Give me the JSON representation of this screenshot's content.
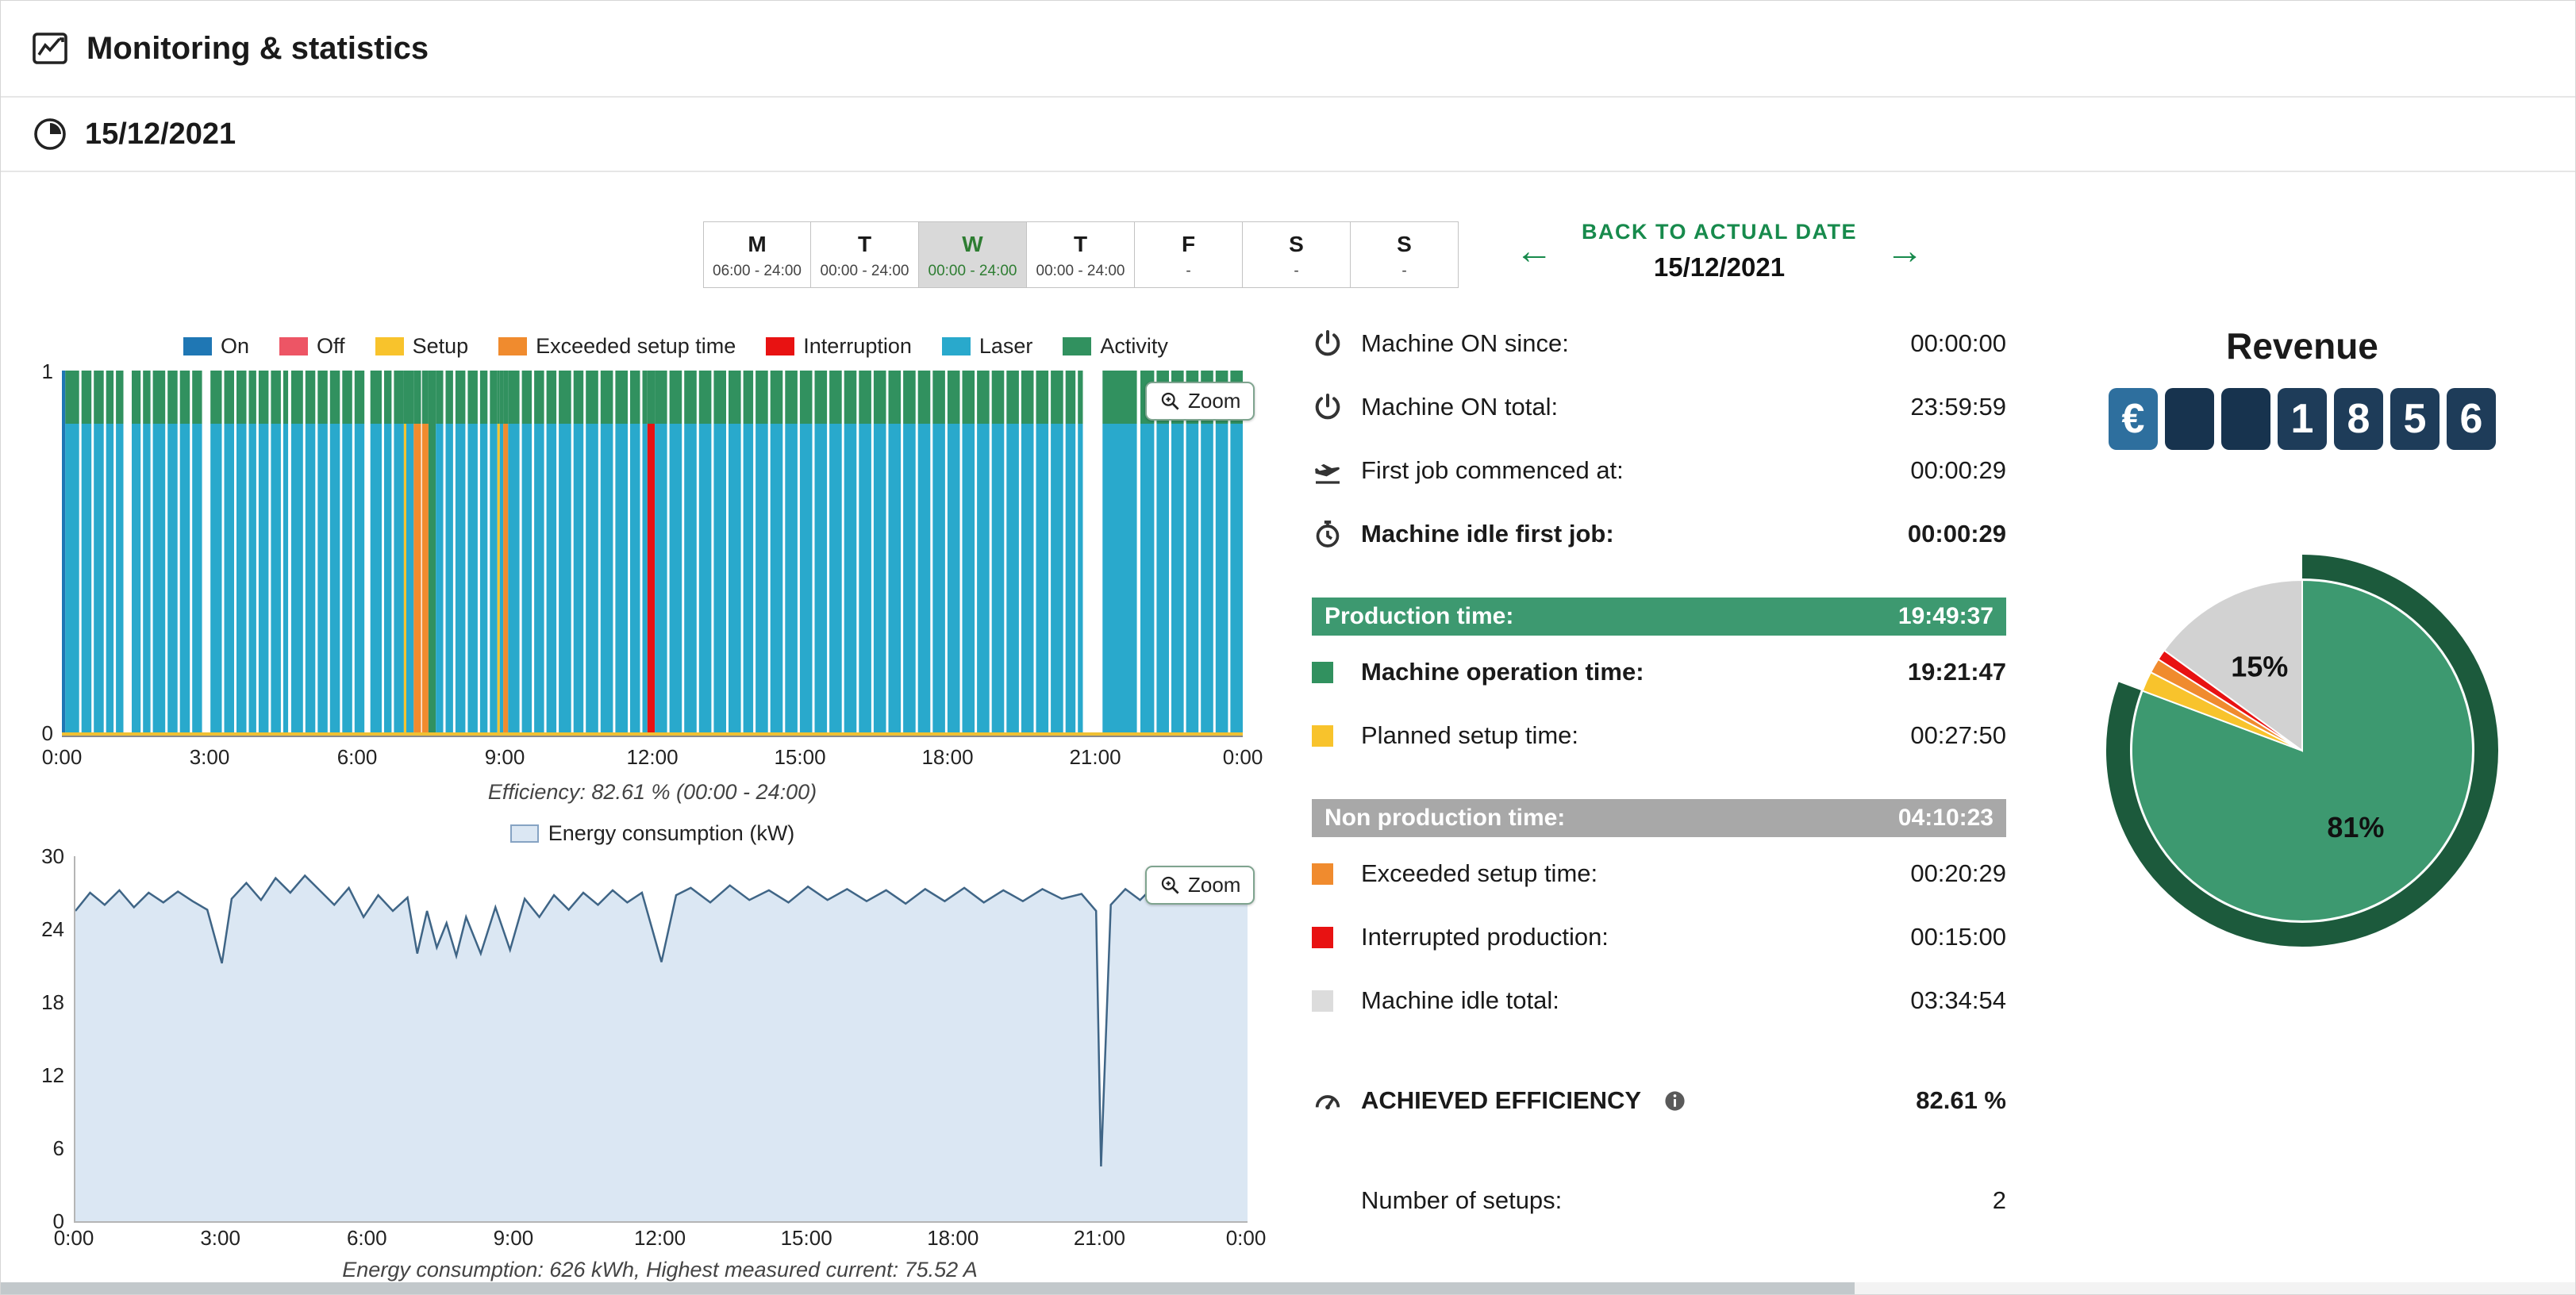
{
  "header": {
    "title": "Monitoring & statistics"
  },
  "datebar": {
    "date": "15/12/2021"
  },
  "week": {
    "days": [
      {
        "label": "M",
        "time": "06:00 - 24:00",
        "selected": false
      },
      {
        "label": "T",
        "time": "00:00 - 24:00",
        "selected": false
      },
      {
        "label": "W",
        "time": "00:00 - 24:00",
        "selected": true
      },
      {
        "label": "T",
        "time": "00:00 - 24:00",
        "selected": false
      },
      {
        "label": "F",
        "time": "-",
        "selected": false
      },
      {
        "label": "S",
        "time": "-",
        "selected": false
      },
      {
        "label": "S",
        "time": "-",
        "selected": false
      }
    ]
  },
  "nav": {
    "left_arrow": "←",
    "back_label": "BACK TO ACTUAL DATE",
    "right_arrow": "→",
    "date": "15/12/2021"
  },
  "legend": [
    {
      "label": "On",
      "color": "#1f77b4"
    },
    {
      "label": "Off",
      "color": "#ed5565"
    },
    {
      "label": "Setup",
      "color": "#f8c32c"
    },
    {
      "label": "Exceeded setup time",
      "color": "#f08b2e"
    },
    {
      "label": "Interruption",
      "color": "#e81212"
    },
    {
      "label": "Laser",
      "color": "#29a9cc"
    },
    {
      "label": "Activity",
      "color": "#31915f"
    }
  ],
  "zoom_button": {
    "label": "Zoom"
  },
  "captions": {
    "efficiency": "Efficiency: 82.61 % (00:00 - 24:00)",
    "energy": "Energy consumption: 626 kWh, Highest measured current: 75.52 A"
  },
  "energy_legend": {
    "label": "Energy consumption (kW)"
  },
  "stats": {
    "rows": [
      {
        "type": "row",
        "icon": "power",
        "label": "Machine ON since:",
        "value": "00:00:00"
      },
      {
        "type": "row",
        "icon": "power",
        "label": "Machine ON total:",
        "value": "23:59:59"
      },
      {
        "type": "row",
        "icon": "takeoff",
        "label": "First job commenced at:",
        "value": "00:00:29"
      },
      {
        "type": "row",
        "icon": "stopwatch",
        "label": "Machine idle first job:",
        "value": "00:00:29",
        "bold": true
      },
      {
        "type": "header",
        "color": "#3d9970",
        "label": "Production time:",
        "value": "19:49:37"
      },
      {
        "type": "row",
        "swatch": "#31915f",
        "label": "Machine operation time:",
        "value": "19:21:47",
        "bold": true
      },
      {
        "type": "row",
        "swatch": "#f8c32c",
        "label": "Planned setup time:",
        "value": "00:27:50"
      },
      {
        "type": "header",
        "color": "#a8a8a8",
        "label": "Non production time:",
        "value": "04:10:23"
      },
      {
        "type": "row",
        "swatch": "#f08b2e",
        "label": "Exceeded setup time:",
        "value": "00:20:29"
      },
      {
        "type": "row",
        "swatch": "#e81212",
        "label": "Interrupted production:",
        "value": "00:15:00"
      },
      {
        "type": "row",
        "swatch": "#dcdcdc",
        "label": "Machine idle total:",
        "value": "03:34:54"
      },
      {
        "type": "row",
        "icon": "gauge",
        "label": "ACHIEVED EFFICIENCY",
        "value": "82.61 %",
        "bold": true,
        "info": true,
        "gap": true
      },
      {
        "type": "row",
        "label": "Number of setups:",
        "value": "2",
        "gap": true
      }
    ]
  },
  "revenue": {
    "title": "Revenue",
    "currency": "€",
    "digits": [
      "",
      "",
      "1",
      "8",
      "5",
      "6"
    ]
  },
  "chart_data": [
    {
      "type": "timeline",
      "title": "Machine state timeline (00:00 - 24:00)",
      "x_range_hours": [
        0,
        24
      ],
      "x_ticks": [
        "0:00",
        "3:00",
        "6:00",
        "9:00",
        "12:00",
        "15:00",
        "18:00",
        "21:00",
        "0:00"
      ],
      "y_ticks": [
        "1",
        "0"
      ],
      "activity_band_fraction": 0.145,
      "baseline_color": "#f0c033",
      "segments": [
        {
          "state": "on",
          "start": 0.0,
          "end": 0.07
        },
        {
          "state": "laser",
          "start": 0.07,
          "end": 1.25
        },
        {
          "state": "gap",
          "start": 1.25,
          "end": 1.42
        },
        {
          "state": "laser",
          "start": 1.42,
          "end": 2.85
        },
        {
          "state": "gap",
          "start": 2.85,
          "end": 3.02
        },
        {
          "state": "laser",
          "start": 3.02,
          "end": 4.6
        },
        {
          "state": "gap",
          "start": 4.6,
          "end": 4.66
        },
        {
          "state": "laser",
          "start": 4.66,
          "end": 6.15
        },
        {
          "state": "gap",
          "start": 6.15,
          "end": 6.27
        },
        {
          "state": "laser",
          "start": 6.27,
          "end": 6.95
        },
        {
          "state": "setup",
          "start": 6.95,
          "end": 7.0
        },
        {
          "state": "laser",
          "start": 7.0,
          "end": 7.15
        },
        {
          "state": "exceeded",
          "start": 7.15,
          "end": 7.3
        },
        {
          "state": "gap",
          "start": 7.3,
          "end": 7.32
        },
        {
          "state": "exceeded",
          "start": 7.32,
          "end": 7.45
        },
        {
          "state": "activity",
          "start": 7.45,
          "end": 7.6
        },
        {
          "state": "laser",
          "start": 7.6,
          "end": 8.85
        },
        {
          "state": "setup",
          "start": 8.85,
          "end": 8.9
        },
        {
          "state": "laser",
          "start": 8.9,
          "end": 8.97
        },
        {
          "state": "exceeded",
          "start": 8.97,
          "end": 9.07
        },
        {
          "state": "laser",
          "start": 9.07,
          "end": 11.9
        },
        {
          "state": "interruption",
          "start": 11.9,
          "end": 12.05
        },
        {
          "state": "laser",
          "start": 12.05,
          "end": 20.75
        },
        {
          "state": "gap",
          "start": 20.75,
          "end": 21.15
        },
        {
          "state": "laser",
          "start": 21.15,
          "end": 21.85
        },
        {
          "state": "gap",
          "start": 21.85,
          "end": 21.92
        },
        {
          "state": "laser",
          "start": 21.92,
          "end": 24.0
        }
      ],
      "hairlines": [
        0.35,
        0.6,
        0.85,
        1.05,
        1.6,
        1.8,
        2.1,
        2.35,
        2.6,
        3.25,
        3.5,
        3.75,
        3.95,
        4.2,
        4.45,
        4.9,
        5.15,
        5.4,
        5.65,
        5.9,
        6.5,
        6.7,
        7.75,
        7.95,
        8.2,
        8.45,
        8.65,
        9.3,
        9.55,
        9.8,
        10.05,
        10.35,
        10.6,
        10.9,
        11.2,
        11.5,
        11.75,
        12.3,
        12.6,
        12.9,
        13.2,
        13.5,
        13.8,
        14.05,
        14.35,
        14.65,
        14.95,
        15.25,
        15.55,
        15.85,
        16.15,
        16.45,
        16.75,
        17.05,
        17.35,
        17.65,
        17.95,
        18.25,
        18.55,
        18.85,
        19.15,
        19.45,
        19.75,
        20.05,
        20.35,
        20.6,
        22.2,
        22.5,
        22.8,
        23.1,
        23.4,
        23.7
      ]
    },
    {
      "type": "area",
      "name": "Energy consumption (kW)",
      "ylim": [
        0,
        30
      ],
      "y_ticks": [
        0,
        6,
        12,
        18,
        24,
        30
      ],
      "x_ticks": [
        "0:00",
        "3:00",
        "6:00",
        "9:00",
        "12:00",
        "15:00",
        "18:00",
        "21:00",
        "0:00"
      ],
      "line_color": "#3f6586",
      "fill_color": "#dbe7f3",
      "points": [
        [
          0,
          25.5
        ],
        [
          0.3,
          27.0
        ],
        [
          0.6,
          26.0
        ],
        [
          0.9,
          27.2
        ],
        [
          1.2,
          25.8
        ],
        [
          1.5,
          27.0
        ],
        [
          1.8,
          26.2
        ],
        [
          2.1,
          27.1
        ],
        [
          2.4,
          26.3
        ],
        [
          2.7,
          25.6
        ],
        [
          3.0,
          21.2
        ],
        [
          3.2,
          26.5
        ],
        [
          3.5,
          27.8
        ],
        [
          3.8,
          26.4
        ],
        [
          4.1,
          28.2
        ],
        [
          4.4,
          27.0
        ],
        [
          4.7,
          28.4
        ],
        [
          5.0,
          27.2
        ],
        [
          5.3,
          26.0
        ],
        [
          5.6,
          27.4
        ],
        [
          5.9,
          25.0
        ],
        [
          6.2,
          26.8
        ],
        [
          6.5,
          25.5
        ],
        [
          6.8,
          26.6
        ],
        [
          7.0,
          22.0
        ],
        [
          7.2,
          25.5
        ],
        [
          7.4,
          22.5
        ],
        [
          7.6,
          24.5
        ],
        [
          7.8,
          21.8
        ],
        [
          8.0,
          25.0
        ],
        [
          8.3,
          22.0
        ],
        [
          8.6,
          25.8
        ],
        [
          8.9,
          22.3
        ],
        [
          9.2,
          26.5
        ],
        [
          9.5,
          25.0
        ],
        [
          9.8,
          26.8
        ],
        [
          10.1,
          25.6
        ],
        [
          10.4,
          27.0
        ],
        [
          10.7,
          26.0
        ],
        [
          11.0,
          27.2
        ],
        [
          11.3,
          26.2
        ],
        [
          11.6,
          27.0
        ],
        [
          12.0,
          21.3
        ],
        [
          12.3,
          26.8
        ],
        [
          12.6,
          27.4
        ],
        [
          13.0,
          26.2
        ],
        [
          13.4,
          27.6
        ],
        [
          13.8,
          26.4
        ],
        [
          14.2,
          27.2
        ],
        [
          14.6,
          26.2
        ],
        [
          15.0,
          27.5
        ],
        [
          15.4,
          26.4
        ],
        [
          15.8,
          27.3
        ],
        [
          16.2,
          26.3
        ],
        [
          16.6,
          27.2
        ],
        [
          17.0,
          26.1
        ],
        [
          17.4,
          27.3
        ],
        [
          17.8,
          26.3
        ],
        [
          18.2,
          27.4
        ],
        [
          18.6,
          26.2
        ],
        [
          19.0,
          27.2
        ],
        [
          19.4,
          26.3
        ],
        [
          19.8,
          27.3
        ],
        [
          20.2,
          26.5
        ],
        [
          20.6,
          26.9
        ],
        [
          20.9,
          25.5
        ],
        [
          21.0,
          4.5
        ],
        [
          21.2,
          26.0
        ],
        [
          21.5,
          27.3
        ],
        [
          21.8,
          26.4
        ],
        [
          22.1,
          27.6
        ],
        [
          22.4,
          26.6
        ],
        [
          22.7,
          27.8
        ],
        [
          23.0,
          26.8
        ],
        [
          23.3,
          27.5
        ],
        [
          23.6,
          26.9
        ],
        [
          24.0,
          28.0
        ]
      ]
    },
    {
      "type": "pie",
      "title": "Machine time share",
      "ring_color": "#1c5a3c",
      "slices": [
        {
          "label": "81%",
          "value": 80.7,
          "color": "#3d9970",
          "show_label": true
        },
        {
          "label": "",
          "value": 1.9,
          "color": "#f8c32c",
          "show_label": false
        },
        {
          "label": "",
          "value": 1.4,
          "color": "#f08b2e",
          "show_label": false
        },
        {
          "label": "",
          "value": 1.0,
          "color": "#e81212",
          "show_label": false
        },
        {
          "label": "15%",
          "value": 15.0,
          "color": "#d2d2d2",
          "show_label": true
        }
      ]
    }
  ]
}
